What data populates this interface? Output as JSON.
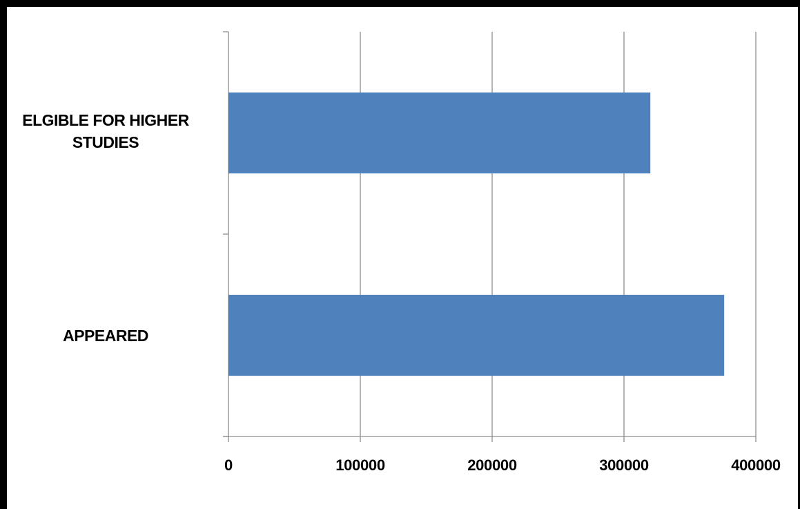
{
  "chart_data": {
    "type": "bar",
    "orientation": "horizontal",
    "categories": [
      "ELGIBLE FOR HIGHER STUDIES",
      "APPEARED"
    ],
    "values": [
      320000,
      376000
    ],
    "xlim": [
      0,
      400000
    ],
    "xticks": [
      "0",
      "100000",
      "200000",
      "300000",
      "400000"
    ],
    "grid": true,
    "bar_color": "#4F81BD",
    "legend": "none"
  }
}
